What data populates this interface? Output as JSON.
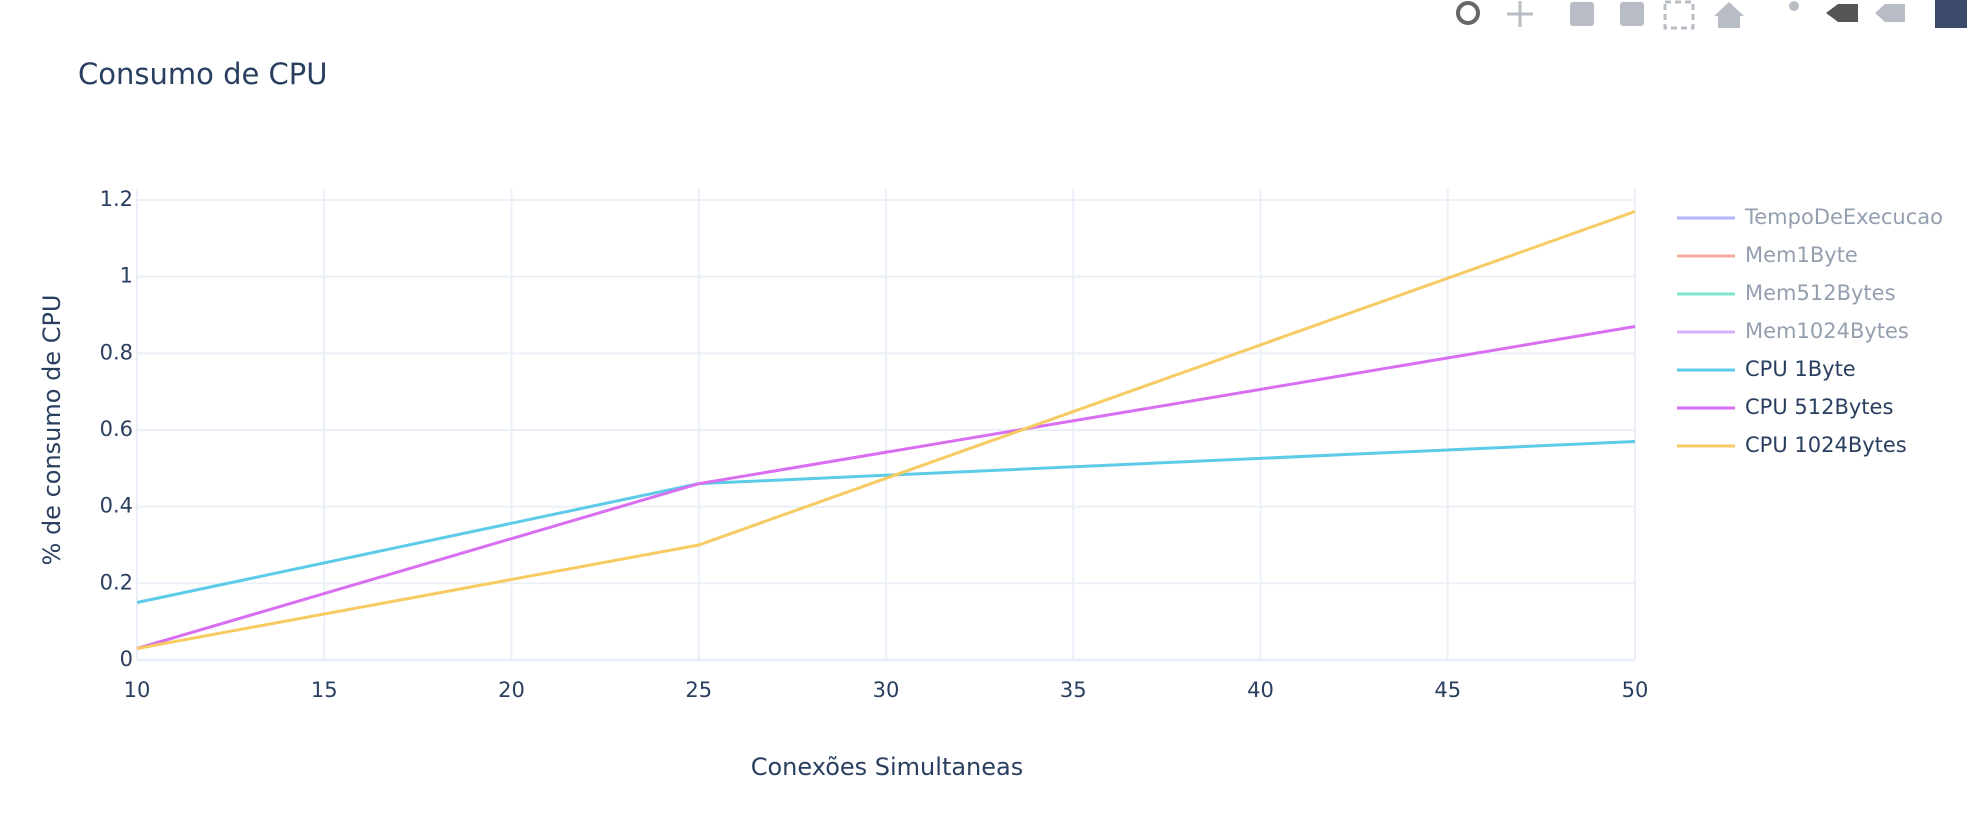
{
  "chart_data": {
    "type": "line",
    "title": "Consumo de CPU",
    "x_label": "Conexões Simultaneas",
    "y_label": "% de consumo de CPU",
    "x": [
      10,
      25,
      50
    ],
    "series": [
      {
        "name": "TempoDeExecucao",
        "color": "#636efa",
        "visible": "legendonly"
      },
      {
        "name": "Mem1Byte",
        "color": "#ef553b",
        "visible": "legendonly"
      },
      {
        "name": "Mem512Bytes",
        "color": "#00cc96",
        "visible": "legendonly"
      },
      {
        "name": "Mem1024Bytes",
        "color": "#ab63fa",
        "visible": "legendonly"
      },
      {
        "name": "CPU 1Byte",
        "color": "#5ccbe8",
        "values": [
          0.15,
          0.46,
          0.57
        ]
      },
      {
        "name": "CPU 512Bytes",
        "color": "#d86ef0",
        "values": [
          0.03,
          0.46,
          0.87
        ]
      },
      {
        "name": "CPU 1024Bytes",
        "color": "#f6cb62",
        "values": [
          0.03,
          0.3,
          1.17
        ]
      }
    ],
    "xlim": [
      10,
      50
    ],
    "xticks": [
      10,
      15,
      20,
      25,
      30,
      35,
      40,
      45,
      50
    ],
    "ylim": [
      0,
      1.229
    ],
    "yticks": [
      0,
      0.2,
      0.4,
      0.6,
      0.8,
      1,
      1.2
    ],
    "grid": true,
    "legend": "right"
  }
}
